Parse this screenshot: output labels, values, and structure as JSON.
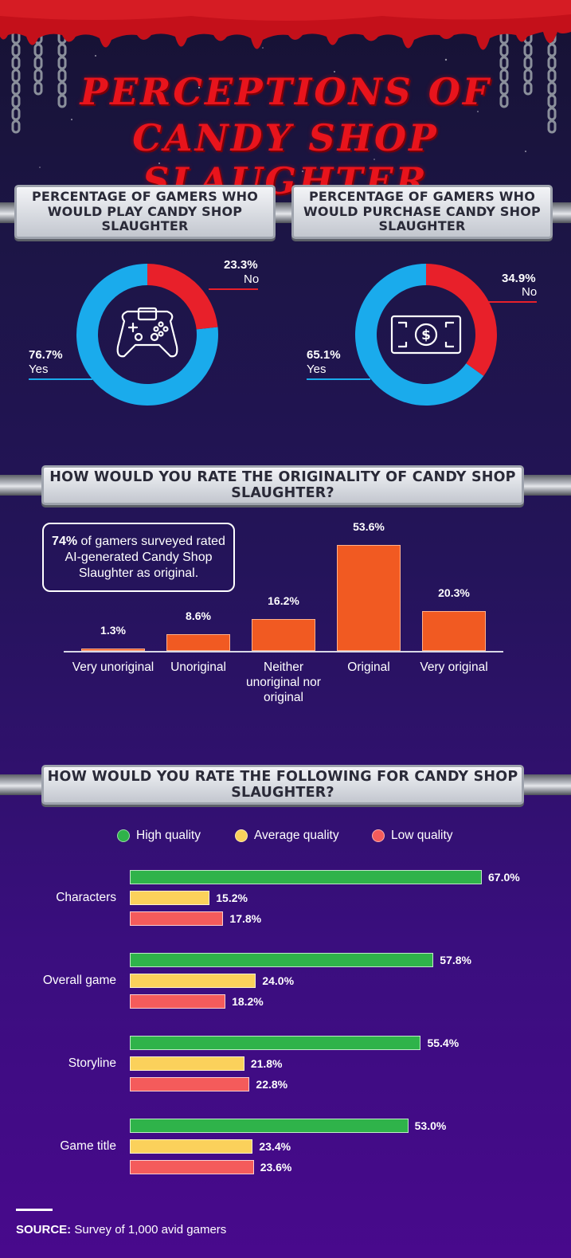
{
  "title": {
    "line1": "PERCEPTIONS OF",
    "line2": "CANDY SHOP SLAUGHTER"
  },
  "colors": {
    "yes": "#1aabec",
    "no": "#e8202a",
    "bar_orange": "#f15a22",
    "high": "#2fb34a",
    "average": "#fbd15b",
    "low": "#f45b5b"
  },
  "donut_play": {
    "heading": "PERCENTAGE OF GAMERS WHO WOULD PLAY CANDY SHOP SLAUGHTER",
    "icon": "gamepad-icon",
    "yes_pct": "76.7%",
    "yes_label": "Yes",
    "no_pct": "23.3%",
    "no_label": "No"
  },
  "donut_purchase": {
    "heading": "PERCENTAGE OF GAMERS WHO WOULD PURCHASE CANDY SHOP SLAUGHTER",
    "icon": "dollar-bill-icon",
    "yes_pct": "65.1%",
    "yes_label": "Yes",
    "no_pct": "34.9%",
    "no_label": "No"
  },
  "originality": {
    "heading": "HOW WOULD YOU RATE THE ORIGINALITY OF CANDY SHOP SLAUGHTER?",
    "callout_bold": "74%",
    "callout_text": " of gamers surveyed rated AI-generated Candy Shop Slaughter as original.",
    "value_labels": [
      "1.3%",
      "8.6%",
      "16.2%",
      "53.6%",
      "20.3%"
    ],
    "category_labels": [
      "Very unoriginal",
      "Unoriginal",
      "Neither unoriginal nor original",
      "Original",
      "Very original"
    ]
  },
  "ratings": {
    "heading": "HOW WOULD YOU RATE THE FOLLOWING FOR CANDY SHOP SLAUGHTER?",
    "legend": [
      "High quality",
      "Average quality",
      "Low quality"
    ],
    "groups": [
      {
        "label": "Characters",
        "values": [
          "67.0%",
          "15.2%",
          "17.8%"
        ]
      },
      {
        "label": "Overall game",
        "values": [
          "57.8%",
          "24.0%",
          "18.2%"
        ]
      },
      {
        "label": "Storyline",
        "values": [
          "55.4%",
          "21.8%",
          "22.8%"
        ]
      },
      {
        "label": "Game title",
        "values": [
          "53.0%",
          "23.4%",
          "23.6%"
        ]
      }
    ]
  },
  "source": {
    "label": "SOURCE:",
    "text": "Survey of 1,000 avid gamers"
  },
  "chart_data": [
    {
      "type": "pie",
      "title": "PERCENTAGE OF GAMERS WHO WOULD PLAY CANDY SHOP SLAUGHTER",
      "categories": [
        "Yes",
        "No"
      ],
      "values": [
        76.7,
        23.3
      ]
    },
    {
      "type": "pie",
      "title": "PERCENTAGE OF GAMERS WHO WOULD PURCHASE CANDY SHOP SLAUGHTER",
      "categories": [
        "Yes",
        "No"
      ],
      "values": [
        65.1,
        34.9
      ]
    },
    {
      "type": "bar",
      "title": "HOW WOULD YOU RATE THE ORIGINALITY OF CANDY SHOP SLAUGHTER?",
      "categories": [
        "Very unoriginal",
        "Unoriginal",
        "Neither unoriginal nor original",
        "Original",
        "Very original"
      ],
      "values": [
        1.3,
        8.6,
        16.2,
        53.6,
        20.3
      ],
      "ylim": [
        0,
        53.6
      ]
    },
    {
      "type": "bar",
      "orientation": "horizontal",
      "title": "HOW WOULD YOU RATE THE FOLLOWING FOR CANDY SHOP SLAUGHTER?",
      "categories": [
        "Characters",
        "Overall game",
        "Storyline",
        "Game title"
      ],
      "series": [
        {
          "name": "High quality",
          "values": [
            67.0,
            57.8,
            55.4,
            53.0
          ]
        },
        {
          "name": "Average quality",
          "values": [
            15.2,
            24.0,
            21.8,
            23.4
          ]
        },
        {
          "name": "Low quality",
          "values": [
            17.8,
            18.2,
            22.8,
            23.6
          ]
        }
      ],
      "legend": "top",
      "xlim": [
        0,
        67.0
      ]
    }
  ]
}
